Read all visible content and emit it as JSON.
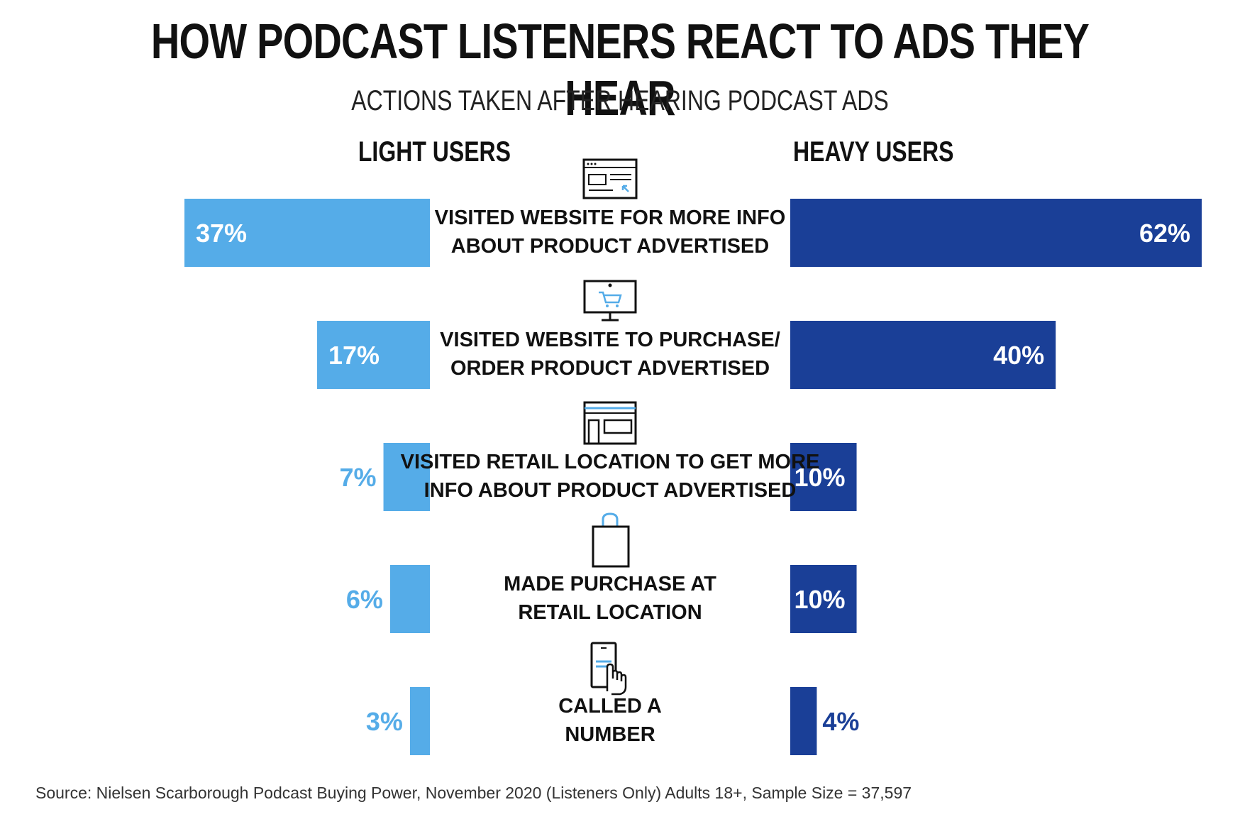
{
  "chart_data": {
    "type": "bar",
    "title": "HOW PODCAST LISTENERS REACT TO ADS THEY HEAR",
    "subtitle": "ACTIONS TAKEN AFTER HEARING PODCAST ADS",
    "categories": [
      [
        "VISITED WEBSITE FOR MORE INFO",
        "ABOUT PRODUCT ADVERTISED"
      ],
      [
        "VISITED WEBSITE TO PURCHASE/",
        "ORDER PRODUCT ADVERTISED"
      ],
      [
        "VISITED RETAIL LOCATION TO GET MORE",
        "INFO ABOUT PRODUCT ADVERTISED"
      ],
      [
        "MADE PURCHASE AT",
        "RETAIL LOCATION"
      ],
      [
        "CALLED A",
        "NUMBER"
      ]
    ],
    "series": [
      {
        "name": "LIGHT USERS",
        "values": [
          37,
          17,
          7,
          6,
          3
        ],
        "labels": [
          "37%",
          "17%",
          "7%",
          "6%",
          "3%"
        ],
        "color": "#55ace8"
      },
      {
        "name": "HEAVY USERS",
        "values": [
          62,
          40,
          10,
          10,
          4
        ],
        "labels": [
          "62%",
          "40%",
          "10%",
          "10%",
          "4%"
        ],
        "color": "#1a3f97"
      }
    ],
    "icons": [
      "browser-window-icon",
      "monitor-cart-icon",
      "storefront-icon",
      "shopping-bag-icon",
      "phone-tap-icon"
    ],
    "accent_icon_color": "#55ace8"
  },
  "source": "Source: Nielsen Scarborough Podcast Buying Power, November 2020 (Listeners Only) Adults 18+, Sample Size = 37,597"
}
